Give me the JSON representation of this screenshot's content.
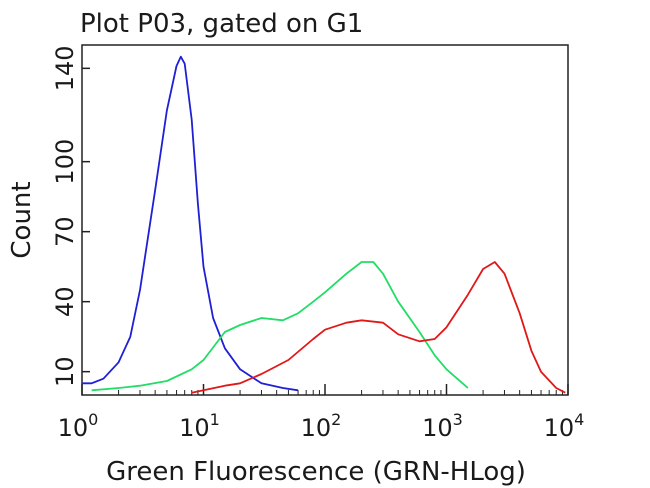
{
  "chart_data": {
    "type": "line",
    "title": "Plot P03, gated on G1",
    "xlabel": "Green Fluorescence (GRN-HLog)",
    "ylabel": "Count",
    "x_scale": "log",
    "xlim": [
      1,
      10000
    ],
    "ylim": [
      0,
      150
    ],
    "grid": false,
    "x_ticks": [
      {
        "base": "10",
        "exp": "0",
        "value": 1
      },
      {
        "base": "10",
        "exp": "1",
        "value": 10
      },
      {
        "base": "10",
        "exp": "2",
        "value": 100
      },
      {
        "base": "10",
        "exp": "3",
        "value": 1000
      },
      {
        "base": "10",
        "exp": "4",
        "value": 10000
      }
    ],
    "y_ticks": [
      {
        "label": "10",
        "value": 10
      },
      {
        "label": "40",
        "value": 40
      },
      {
        "label": "70",
        "value": 70
      },
      {
        "label": "100",
        "value": 100
      },
      {
        "label": "140",
        "value": 140
      }
    ],
    "series": [
      {
        "color": "#1f1fd6",
        "x": [
          1.0,
          1.2,
          1.5,
          2.0,
          2.5,
          3.0,
          4.0,
          5.0,
          6.0,
          6.5,
          7.0,
          8.0,
          9.0,
          10.0,
          12.0,
          15.0,
          20.0,
          30.0,
          45.0,
          60.0
        ],
        "y": [
          5,
          5,
          7,
          14,
          25,
          45,
          88,
          122,
          141,
          145,
          142,
          118,
          82,
          55,
          33,
          20,
          11,
          5,
          3,
          2
        ]
      },
      {
        "color": "#22dd66",
        "x": [
          1.2,
          2.0,
          3.0,
          5.0,
          8.0,
          10.0,
          15.0,
          20.0,
          30.0,
          45.0,
          60.0,
          80.0,
          100.0,
          150.0,
          200.0,
          250.0,
          300.0,
          400.0,
          600.0,
          800.0,
          1000.0,
          1500.0
        ],
        "y": [
          2,
          3,
          4,
          6,
          11,
          15,
          27,
          30,
          33,
          32,
          35,
          40,
          44,
          52,
          57,
          57,
          52,
          40,
          27,
          17,
          11,
          3
        ]
      },
      {
        "color": "#e01818",
        "x": [
          8.0,
          10.0,
          15.0,
          20.0,
          30.0,
          50.0,
          80.0,
          100.0,
          150.0,
          200.0,
          300.0,
          400.0,
          600.0,
          800.0,
          1000.0,
          1500.0,
          2000.0,
          2500.0,
          3000.0,
          4000.0,
          5000.0,
          6000.0,
          8000.0,
          9500.0
        ],
        "y": [
          1,
          2,
          4,
          5,
          9,
          15,
          24,
          28,
          31,
          32,
          31,
          26,
          23,
          24,
          29,
          43,
          54,
          57,
          52,
          35,
          19,
          10,
          3,
          1
        ]
      }
    ]
  }
}
